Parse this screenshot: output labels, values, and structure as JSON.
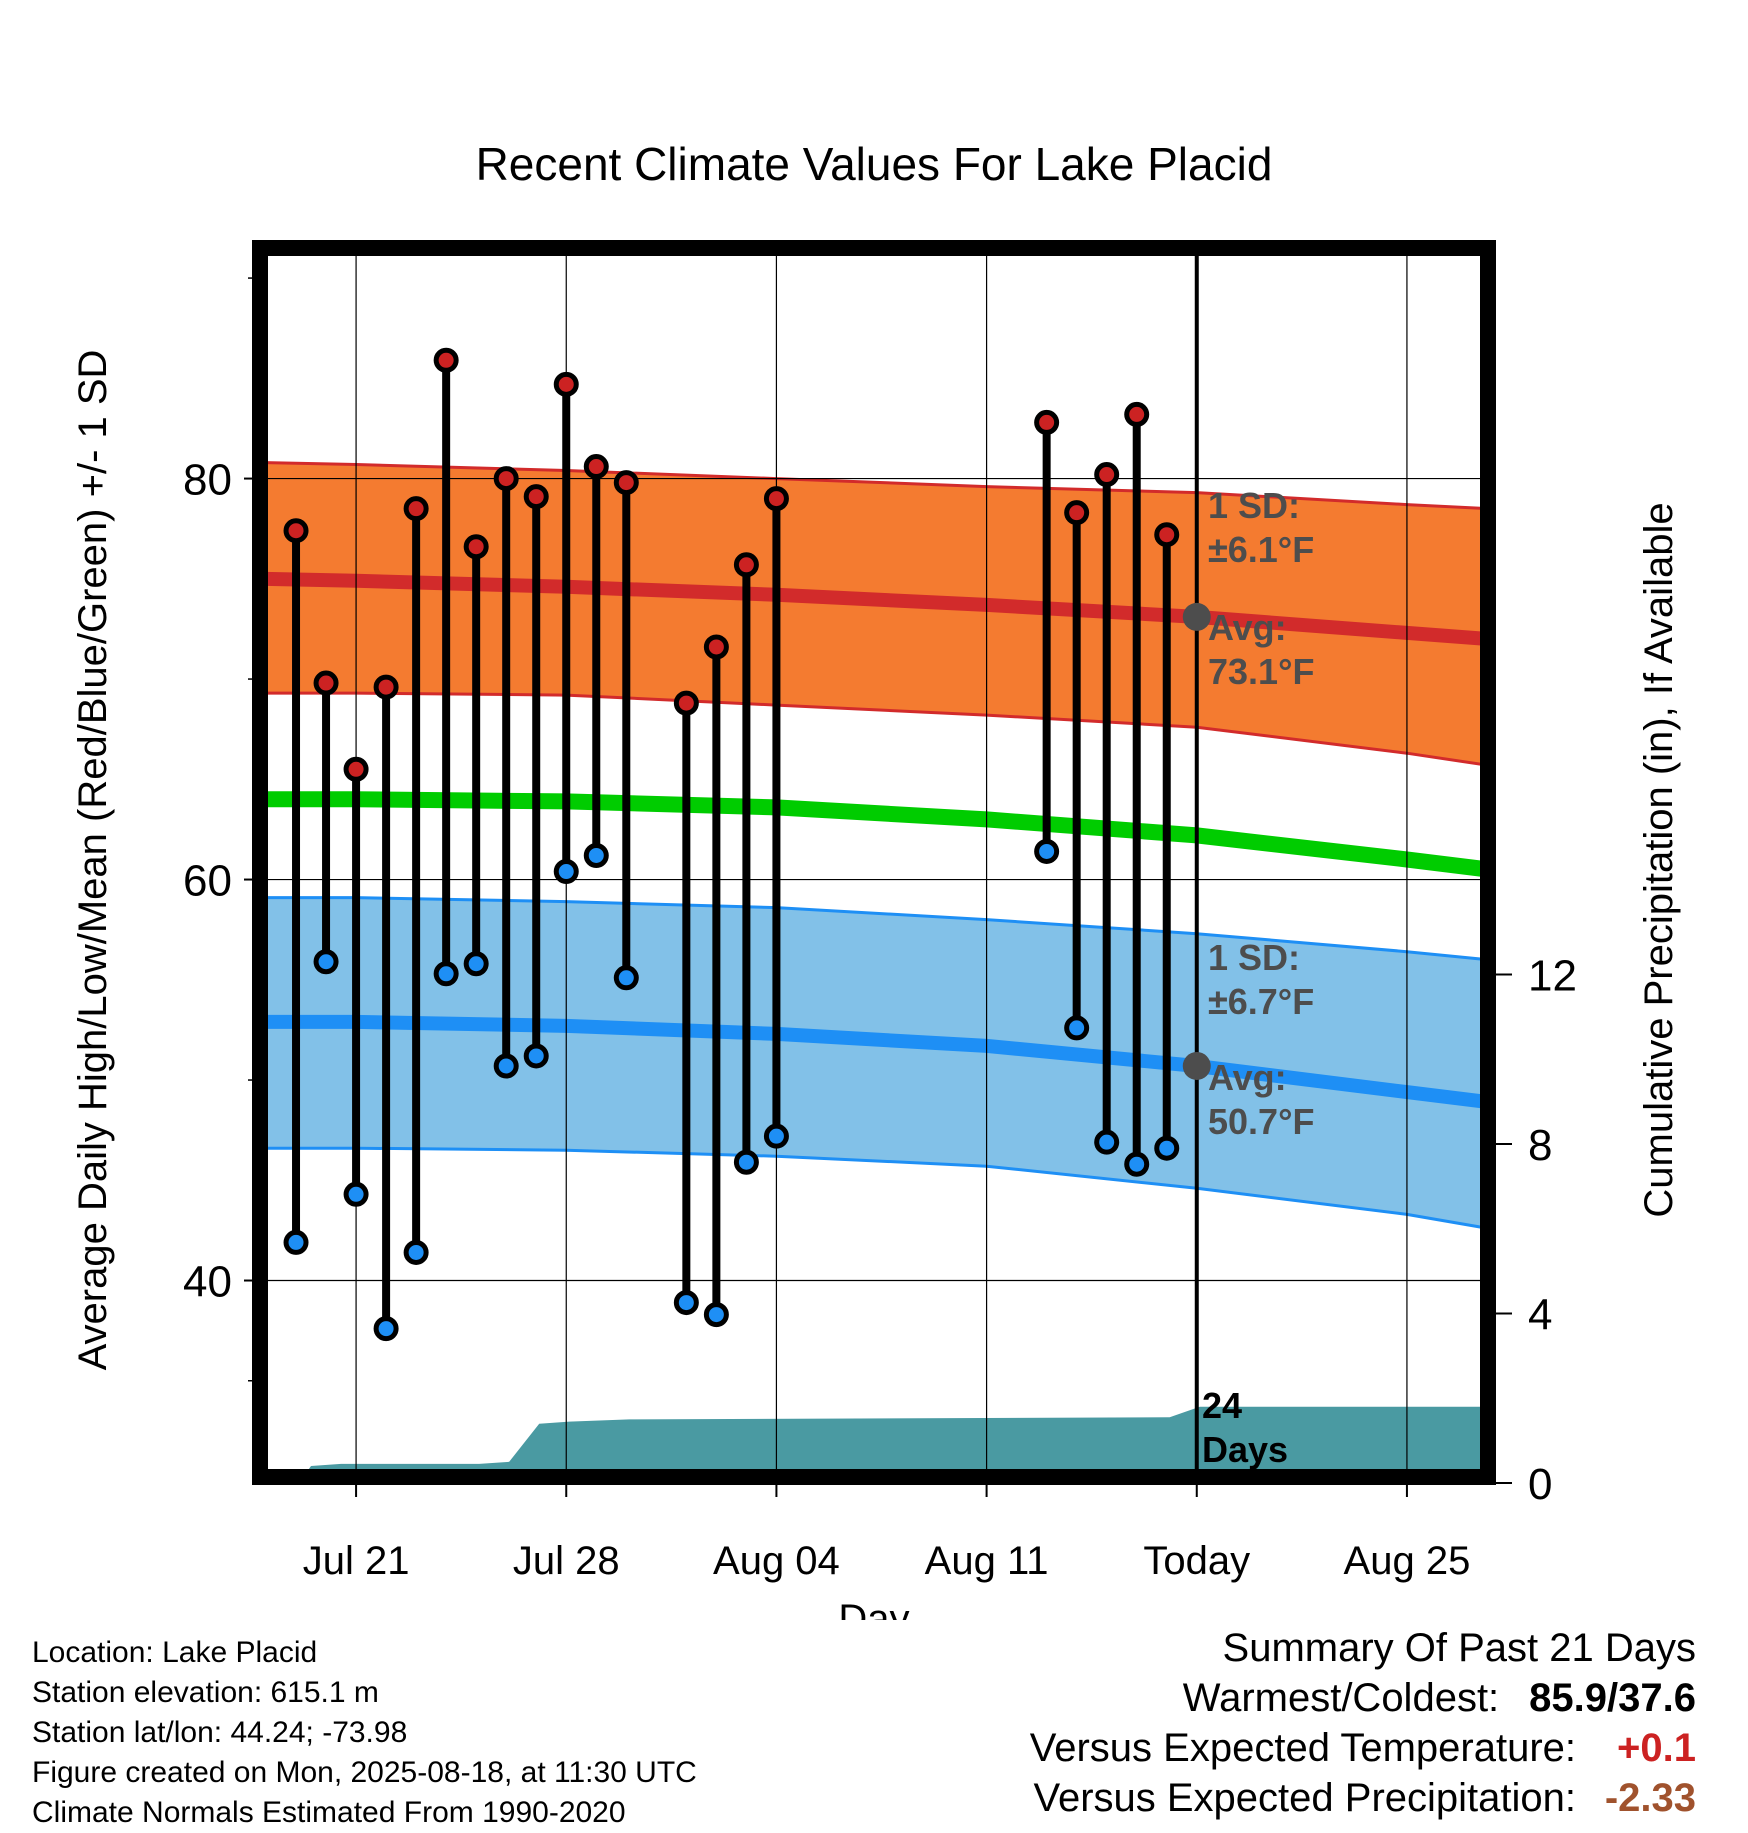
{
  "chart_data": {
    "type": "line",
    "title": "Recent Climate Values For Lake Placid",
    "xlabel": "Day",
    "ylabel": "Average Daily High/Low/Mean (Red/Blue/Green) +/- 1 SD",
    "y2label": "Cumulative Precipitation (in), If Available",
    "ylim": [
      30.2,
      91.5
    ],
    "y_ticks": [
      40,
      60,
      80
    ],
    "y2lim": [
      0,
      24
    ],
    "y2_ticks": [
      0,
      4,
      8,
      12
    ],
    "x_ticks": [
      "Jul 21",
      "Jul 28",
      "Aug 04",
      "Aug 11",
      "Today",
      "Aug 25"
    ],
    "x_tick_days": [
      21,
      28,
      35,
      42,
      49,
      56
    ],
    "xlim": [
      17.8,
      58.7
    ],
    "today_day": 49,
    "grid": true,
    "normal_high_band": {
      "days": [
        17.8,
        21,
        28,
        35,
        42,
        49,
        56,
        58.7
      ],
      "avg": [
        75.0,
        74.9,
        74.6,
        74.2,
        73.7,
        73.1,
        72.3,
        72.0
      ],
      "upper": [
        80.8,
        80.7,
        80.4,
        80.0,
        79.6,
        79.3,
        78.7,
        78.5
      ],
      "lower": [
        69.3,
        69.3,
        69.2,
        68.7,
        68.2,
        67.6,
        66.3,
        65.7
      ]
    },
    "normal_mean": {
      "days": [
        17.8,
        21,
        28,
        35,
        42,
        49,
        56,
        58.7
      ],
      "values": [
        64.0,
        64.0,
        63.9,
        63.6,
        63.0,
        62.2,
        61.0,
        60.5
      ]
    },
    "normal_low_band": {
      "days": [
        17.8,
        21,
        28,
        35,
        42,
        49,
        56,
        58.7
      ],
      "avg": [
        52.9,
        52.9,
        52.7,
        52.3,
        51.7,
        50.7,
        49.4,
        48.9
      ],
      "upper": [
        59.1,
        59.1,
        58.9,
        58.6,
        58.0,
        57.3,
        56.4,
        56.0
      ],
      "lower": [
        46.6,
        46.6,
        46.5,
        46.2,
        45.7,
        44.6,
        43.3,
        42.6
      ]
    },
    "band_annotations": {
      "high_sd": "1 SD:",
      "high_sd_value": "±6.1°F",
      "high_avg": "Avg:",
      "high_avg_value": "73.1°F",
      "low_sd": "1 SD:",
      "low_sd_value": "±6.7°F",
      "low_avg": "Avg:",
      "low_avg_value": "50.7°F"
    },
    "today_marker": {
      "high_avg": 73.1,
      "low_avg": 50.7
    },
    "daily_obs": [
      {
        "day": 19,
        "high": 77.4,
        "low": 41.9
      },
      {
        "day": 20,
        "high": 69.8,
        "low": 55.9
      },
      {
        "day": 21,
        "high": 65.5,
        "low": 44.3
      },
      {
        "day": 22,
        "high": 69.6,
        "low": 37.6
      },
      {
        "day": 23,
        "high": 78.5,
        "low": 41.4
      },
      {
        "day": 24,
        "high": 85.9,
        "low": 55.3
      },
      {
        "day": 25,
        "high": 76.6,
        "low": 55.8
      },
      {
        "day": 26,
        "high": 80.0,
        "low": 50.7
      },
      {
        "day": 27,
        "high": 79.1,
        "low": 51.2
      },
      {
        "day": 28,
        "high": 84.7,
        "low": 60.4
      },
      {
        "day": 29,
        "high": 80.6,
        "low": 61.2
      },
      {
        "day": 30,
        "high": 79.8,
        "low": 55.1
      },
      {
        "day": 32,
        "high": 68.8,
        "low": 38.9
      },
      {
        "day": 33,
        "high": 71.6,
        "low": 38.3
      },
      {
        "day": 34,
        "high": 75.7,
        "low": 45.9
      },
      {
        "day": 35,
        "high": 79.0,
        "low": 47.2
      },
      {
        "day": 44,
        "high": 82.8,
        "low": 61.4
      },
      {
        "day": 45,
        "high": 78.3,
        "low": 52.6
      },
      {
        "day": 46,
        "high": 80.2,
        "low": 46.9
      },
      {
        "day": 47,
        "high": 83.2,
        "low": 45.8
      },
      {
        "day": 48,
        "high": 77.2,
        "low": 46.6
      }
    ],
    "cumulative_precip": {
      "days": [
        19.1,
        19.5,
        20.5,
        25.1,
        26.1,
        27.1,
        28.1,
        30.1,
        48.1,
        49.1,
        58.7
      ],
      "values": [
        0,
        0.4,
        0.45,
        0.45,
        0.5,
        1.4,
        1.45,
        1.5,
        1.55,
        1.8,
        1.8
      ]
    },
    "precip_label_number": "24",
    "precip_label_unit": "Days",
    "colors": {
      "high_band": "#f47b30",
      "high_line": "#d22b2b",
      "low_band": "#82c1e8",
      "low_line": "#1e8ff5",
      "mean_line": "#00cc00",
      "precip": "#4a9aa2",
      "high_dot": "#cc2222",
      "low_dot": "#1e8ff5",
      "annotation": "#4d4d4d",
      "warm": "#cc2222",
      "dry": "#a0522d"
    }
  },
  "footer": {
    "location": "Location: Lake Placid",
    "elevation": "Station elevation: 615.1 m",
    "latlon": "Station lat/lon: 44.24; -73.98",
    "created": "Figure created on Mon, 2025-08-18, at 11:30 UTC",
    "normals": "Climate Normals Estimated From 1990-2020"
  },
  "summary": {
    "heading": "Summary Of Past 21 Days",
    "warm_cold_label": "Warmest/Coldest:",
    "warm_cold_value": "85.9/37.6",
    "temp_label": "Versus Expected Temperature:",
    "temp_value": "+0.1",
    "precip_label": "Versus Expected Precipitation:",
    "precip_value": "-2.33"
  }
}
